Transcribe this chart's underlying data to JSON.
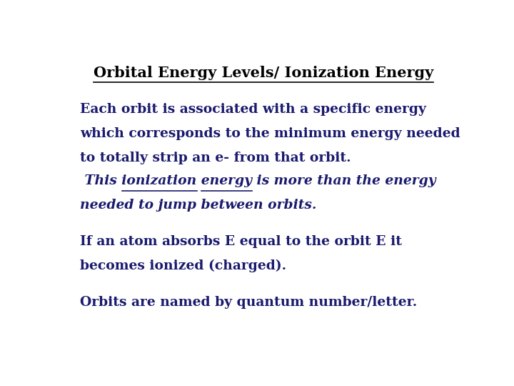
{
  "title": "Orbital Energy Levels/ Ionization Energy",
  "background_color": "#ffffff",
  "text_color": "#1a1a6e",
  "title_color": "#000000",
  "title_fontsize": 15,
  "body_fontsize": 13.5,
  "para1_lines": [
    "Each orbit is associated with a specific energy",
    "which corresponds to the minimum energy needed",
    "to totally strip an e- from that orbit."
  ],
  "para2_lines": [
    " This ionization energy is more than the energy",
    "needed to jump between orbits."
  ],
  "para3_lines": [
    "If an atom absorbs E equal to the orbit E it",
    "becomes ionized (charged)."
  ],
  "para4_lines": [
    "Orbits are named by quantum number/letter."
  ]
}
